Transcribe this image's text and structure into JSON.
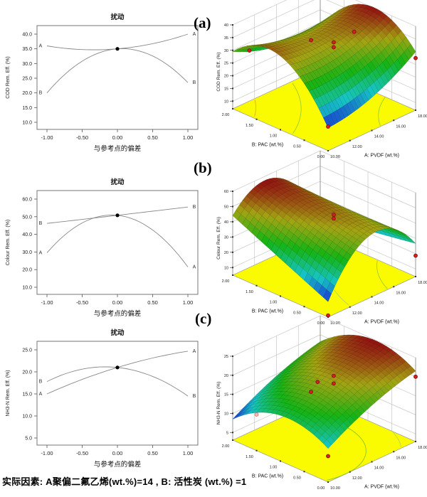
{
  "figure": {
    "panel_labels": [
      "(a)",
      "(b)",
      "(c)"
    ],
    "footer": "实际因素: A聚偏二氟乙烯(wt.%)=14 , B: 活性炭 (wt.%) =1"
  },
  "colors": {
    "floor": "#fafa00",
    "curve": "#888888",
    "point_red": "#d61f1f",
    "point_pink": "#f5b8b8",
    "surface_low": "#2b3fd0",
    "surface_high": "#8c1616"
  },
  "chart_data": [
    {
      "id": "pert-a",
      "type": "line",
      "subtype": "perturbation",
      "title": "扰动",
      "xlabel": "与参考点的偏差",
      "ylabel": "COD Rem. Eff. (%)",
      "x_ticks": [
        "-1.00",
        "-0.50",
        "0.00",
        "0.50",
        "1.00"
      ],
      "y_ticks": [
        10,
        15,
        20,
        25,
        30,
        35,
        40
      ],
      "ylim": [
        10,
        40
      ],
      "center_value": 35.0,
      "series": [
        {
          "name": "A",
          "at_minus1": 36.0,
          "at_zero": 35.0,
          "at_plus1": 40.0
        },
        {
          "name": "B",
          "at_minus1": 20.0,
          "at_zero": 35.0,
          "at_plus1": 23.5
        }
      ]
    },
    {
      "id": "surf-a",
      "type": "surface3d",
      "zlabel": "COD Rem. Eff. (%)",
      "xlabel": "A: PVDF (wt.%)",
      "ylabel": "B: PAC (wt.%)",
      "x_ticks": [
        "10.00",
        "12.00",
        "14.00",
        "16.00",
        "18.00"
      ],
      "y_ticks": [
        "0.00",
        "0.50",
        "1.00",
        "1.50",
        "2.00"
      ],
      "z_ticks": [
        10,
        15,
        20,
        25,
        30,
        35,
        40
      ],
      "model": {
        "c0": 35,
        "cA": 2,
        "cAA": 3,
        "cB": 1.75,
        "cBB": -13.25,
        "cAB": -5
      },
      "points": [
        {
          "a": -0.3,
          "b": 0,
          "dz": 2
        },
        {
          "a": 0,
          "b": -0.2,
          "dz": 1
        },
        {
          "a": 0,
          "b": -0.2,
          "dz": -1
        },
        {
          "a": 0.25,
          "b": -0.4,
          "dz": 5.5
        },
        {
          "a": -1,
          "b": 0.65,
          "dz": -2
        },
        {
          "a": 1,
          "b": -1,
          "dz": -2.5
        },
        {
          "a": -1,
          "b": -1,
          "dz": 0.5
        }
      ],
      "contours": [
        {
          "c": [
            -2.2,
            2.4
          ],
          "r": 2.2,
          "color": "#e09030"
        },
        {
          "c": [
            -2.2,
            2.4
          ],
          "r": 2.9,
          "color": "#80c040"
        },
        {
          "c": [
            1.8,
            -2.2
          ],
          "r": 2.0,
          "color": "#80c040"
        }
      ]
    },
    {
      "id": "pert-b",
      "type": "line",
      "subtype": "perturbation",
      "title": "扰动",
      "xlabel": "与参考点的偏差",
      "ylabel": "Colour Rem. Eff. (%)",
      "x_ticks": [
        "-1.00",
        "-0.50",
        "0.00",
        "0.50",
        "1.00"
      ],
      "y_ticks": [
        10,
        20,
        30,
        40,
        50,
        60
      ],
      "ylim": [
        10,
        60
      ],
      "center_value": 50.8,
      "series": [
        {
          "name": "B",
          "at_minus1": 46.2,
          "at_zero": 50.8,
          "at_plus1": 55.5
        },
        {
          "name": "A",
          "at_minus1": 29.5,
          "at_zero": 50.8,
          "at_plus1": 21.5
        }
      ]
    },
    {
      "id": "surf-b",
      "type": "surface3d",
      "zlabel": "Colour Rem. Eff. (%)",
      "xlabel": "A: PVDF (wt.%)",
      "ylabel": "B: PAC (wt.%)",
      "x_ticks": [
        "10.00",
        "12.00",
        "14.00",
        "16.00",
        "18.00"
      ],
      "y_ticks": [
        "0.00",
        "0.50",
        "1.00",
        "1.50",
        "2.00"
      ],
      "z_ticks": [
        10,
        20,
        30,
        40,
        50,
        60
      ],
      "model": {
        "c0": 50.8,
        "cA": -4,
        "cAA": -25.3,
        "cB": 4.65,
        "cBB": 0.05,
        "cAB": -9.8
      },
      "points": [
        {
          "a": 0,
          "b": -0.2,
          "dz": -2
        },
        {
          "a": 0,
          "b": -0.2,
          "dz": -4.5
        },
        {
          "a": 1,
          "b": -1,
          "dz": -8
        },
        {
          "a": -1,
          "b": -1,
          "dz": -9
        }
      ],
      "contours": [
        {
          "c": [
            2.2,
            -1.8
          ],
          "r": 2.0,
          "color": "#80c040"
        },
        {
          "c": [
            2.2,
            -1.8
          ],
          "r": 2.8,
          "color": "#a8d060"
        }
      ]
    },
    {
      "id": "pert-c",
      "type": "line",
      "subtype": "perturbation",
      "title": "扰动",
      "xlabel": "与参考点的偏差",
      "ylabel": "NH3-N Rem. Eff. (%)",
      "x_ticks": [
        "-1.00",
        "-0.50",
        "0.00",
        "0.50",
        "1.00"
      ],
      "y_ticks": [
        5,
        10,
        15,
        20,
        25
      ],
      "ylim": [
        5,
        25
      ],
      "center_value": 21.0,
      "series": [
        {
          "name": "A",
          "at_minus1": 15.0,
          "at_zero": 21.0,
          "at_plus1": 24.7
        },
        {
          "name": "B",
          "at_minus1": 17.8,
          "at_zero": 21.0,
          "at_plus1": 14.5
        }
      ]
    },
    {
      "id": "surf-c",
      "type": "surface3d",
      "zlabel": "NH3-N Rem. Eff. (%)",
      "xlabel": "A: PVDF (wt.%)",
      "ylabel": "B: PAC (wt.%)",
      "x_ticks": [
        "10.00",
        "12.00",
        "14.00",
        "16.00",
        "18.00"
      ],
      "y_ticks": [
        "0.00",
        "0.50",
        "1.00",
        "1.50",
        "2.00"
      ],
      "z_ticks": [
        5,
        10,
        15,
        20,
        25
      ],
      "model": {
        "c0": 21,
        "cA": 4.85,
        "cAA": -1.15,
        "cB": -1.65,
        "cBB": -4.85,
        "cAB": 0
      },
      "points": [
        {
          "a": 0,
          "b": -0.2,
          "dz": 0
        },
        {
          "a": 0,
          "b": -0.2,
          "dz": -2
        },
        {
          "a": -0.15,
          "b": 0,
          "dz": -1
        },
        {
          "a": -0.3,
          "b": 0,
          "dz": -2
        },
        {
          "a": 1,
          "b": -1,
          "dz": -1.5
        },
        {
          "a": -1,
          "b": -1,
          "dz": -2
        },
        {
          "a": -1,
          "b": 0.5,
          "dz": -0.5,
          "open": true
        }
      ],
      "contours": [
        {
          "c": [
            -0.6,
            0.2
          ],
          "r": 1.2,
          "color": "#6ab82e"
        },
        {
          "c": [
            -0.6,
            0.2
          ],
          "r": 1.75,
          "color": "#a8d060"
        }
      ]
    }
  ]
}
